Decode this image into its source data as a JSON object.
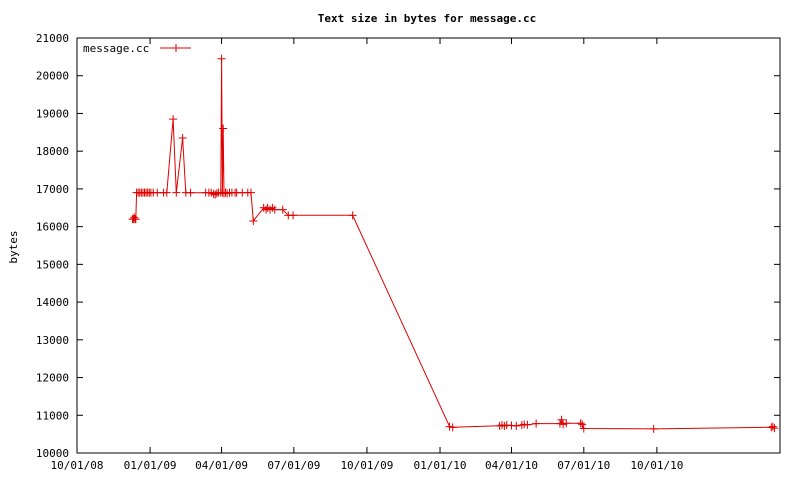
{
  "chart_data": {
    "type": "line",
    "title": "Text size in bytes for message.cc",
    "xlabel": "",
    "ylabel": "bytes",
    "ylim": [
      10000,
      21000
    ],
    "y_ticks": [
      10000,
      11000,
      12000,
      13000,
      14000,
      15000,
      16000,
      17000,
      18000,
      19000,
      20000,
      21000
    ],
    "x_ticks": [
      "10/01/08",
      "01/01/09",
      "04/01/09",
      "07/01/09",
      "10/01/09",
      "01/01/10",
      "04/01/10",
      "07/01/10",
      "10/01/10"
    ],
    "xlim": [
      "2008-10-01",
      "2011-03-05"
    ],
    "grid": false,
    "legend_position": "top-left",
    "colors": {
      "series": "#e00000",
      "axis": "#000000",
      "background": "#ffffff"
    },
    "series": [
      {
        "name": "message.cc",
        "points": [
          [
            "2008-12-10",
            16200
          ],
          [
            "2008-12-11",
            16200
          ],
          [
            "2008-12-12",
            16250
          ],
          [
            "2008-12-13",
            16200
          ],
          [
            "2008-12-14",
            16200
          ],
          [
            "2008-12-15",
            16900
          ],
          [
            "2008-12-17",
            16900
          ],
          [
            "2008-12-19",
            16900
          ],
          [
            "2008-12-21",
            16900
          ],
          [
            "2008-12-23",
            16900
          ],
          [
            "2008-12-25",
            16900
          ],
          [
            "2008-12-27",
            16900
          ],
          [
            "2008-12-29",
            16900
          ],
          [
            "2008-12-31",
            16900
          ],
          [
            "2009-01-02",
            16900
          ],
          [
            "2009-01-05",
            16900
          ],
          [
            "2009-01-10",
            16900
          ],
          [
            "2009-01-18",
            16900
          ],
          [
            "2009-01-22",
            16900
          ],
          [
            "2009-01-30",
            18850
          ],
          [
            "2009-02-03",
            16900
          ],
          [
            "2009-02-11",
            18350
          ],
          [
            "2009-02-15",
            16900
          ],
          [
            "2009-02-21",
            16900
          ],
          [
            "2009-03-12",
            16900
          ],
          [
            "2009-03-16",
            16900
          ],
          [
            "2009-03-19",
            16900
          ],
          [
            "2009-03-22",
            16870
          ],
          [
            "2009-03-24",
            16850
          ],
          [
            "2009-03-26",
            16880
          ],
          [
            "2009-03-28",
            16900
          ],
          [
            "2009-03-31",
            16900
          ],
          [
            "2009-04-01",
            20450
          ],
          [
            "2009-04-02",
            16900
          ],
          [
            "2009-04-03",
            18600
          ],
          [
            "2009-04-04",
            16880
          ],
          [
            "2009-04-06",
            16900
          ],
          [
            "2009-04-08",
            16880
          ],
          [
            "2009-04-11",
            16900
          ],
          [
            "2009-04-14",
            16900
          ],
          [
            "2009-04-18",
            16900
          ],
          [
            "2009-04-20",
            16900
          ],
          [
            "2009-04-27",
            16900
          ],
          [
            "2009-05-04",
            16900
          ],
          [
            "2009-05-08",
            16900
          ],
          [
            "2009-05-11",
            16150
          ],
          [
            "2009-05-24",
            16500
          ],
          [
            "2009-05-27",
            16450
          ],
          [
            "2009-05-29",
            16500
          ],
          [
            "2009-06-01",
            16450
          ],
          [
            "2009-06-04",
            16500
          ],
          [
            "2009-06-07",
            16450
          ],
          [
            "2009-06-17",
            16450
          ],
          [
            "2009-06-24",
            16300
          ],
          [
            "2009-06-30",
            16300
          ],
          [
            "2009-09-13",
            16300
          ],
          [
            "2010-01-13",
            10700
          ],
          [
            "2010-01-17",
            10680
          ],
          [
            "2010-03-17",
            10720
          ],
          [
            "2010-03-20",
            10740
          ],
          [
            "2010-03-23",
            10720
          ],
          [
            "2010-03-26",
            10740
          ],
          [
            "2010-04-01",
            10730
          ],
          [
            "2010-04-07",
            10720
          ],
          [
            "2010-04-14",
            10740
          ],
          [
            "2010-04-17",
            10760
          ],
          [
            "2010-04-21",
            10750
          ],
          [
            "2010-05-02",
            10780
          ],
          [
            "2010-06-01",
            10780
          ],
          [
            "2010-06-03",
            10880
          ],
          [
            "2010-06-05",
            10760
          ],
          [
            "2010-06-09",
            10790
          ],
          [
            "2010-06-27",
            10790
          ],
          [
            "2010-06-29",
            10760
          ],
          [
            "2010-07-01",
            10650
          ],
          [
            "2010-09-27",
            10640
          ],
          [
            "2011-02-22",
            10680
          ],
          [
            "2011-02-24",
            10700
          ],
          [
            "2011-02-26",
            10660
          ]
        ]
      }
    ]
  }
}
